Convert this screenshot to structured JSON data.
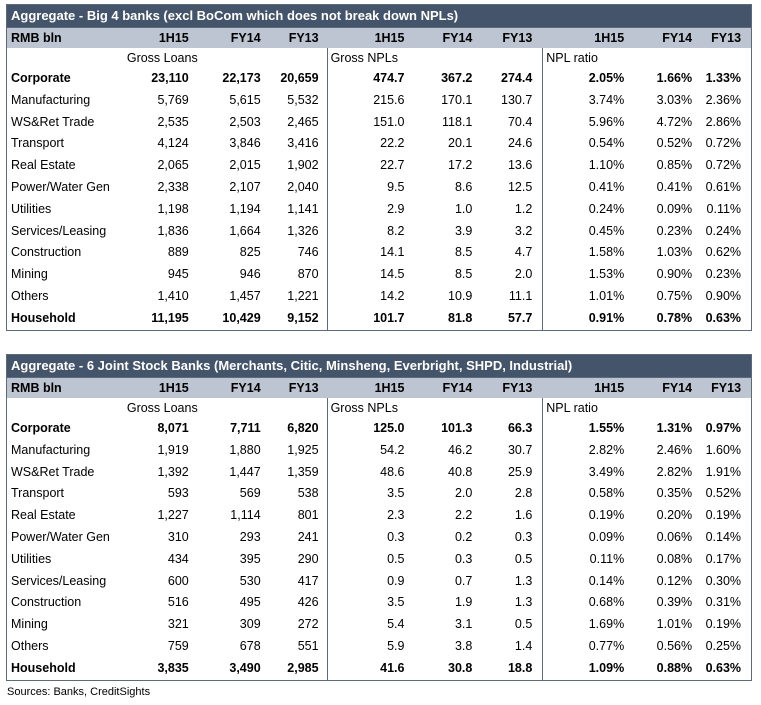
{
  "table1": {
    "title": "Aggregate - Big 4 banks (excl BoCom which does not break down NPLs)",
    "header": [
      "RMB bln",
      "1H15",
      "FY14",
      "FY13",
      "1H15",
      "FY14",
      "FY13",
      "1H15",
      "FY14",
      "FY13"
    ],
    "sub": {
      "gross_loans": "Gross Loans",
      "gross_npls": "Gross NPLs",
      "npl_ratio": "NPL ratio"
    },
    "rows": [
      {
        "label": "Corporate",
        "values": [
          "23,110",
          "22,173",
          "20,659",
          "474.7",
          "367.2",
          "274.4",
          "2.05%",
          "1.66%",
          "1.33%"
        ]
      },
      {
        "label": "Manufacturing",
        "values": [
          "5,769",
          "5,615",
          "5,532",
          "215.6",
          "170.1",
          "130.7",
          "3.74%",
          "3.03%",
          "2.36%"
        ]
      },
      {
        "label": "WS&Ret Trade",
        "values": [
          "2,535",
          "2,503",
          "2,465",
          "151.0",
          "118.1",
          "70.4",
          "5.96%",
          "4.72%",
          "2.86%"
        ]
      },
      {
        "label": "Transport",
        "values": [
          "4,124",
          "3,846",
          "3,416",
          "22.2",
          "20.1",
          "24.6",
          "0.54%",
          "0.52%",
          "0.72%"
        ]
      },
      {
        "label": "Real Estate",
        "values": [
          "2,065",
          "2,015",
          "1,902",
          "22.7",
          "17.2",
          "13.6",
          "1.10%",
          "0.85%",
          "0.72%"
        ]
      },
      {
        "label": "Power/Water Gen",
        "values": [
          "2,338",
          "2,107",
          "2,040",
          "9.5",
          "8.6",
          "12.5",
          "0.41%",
          "0.41%",
          "0.61%"
        ]
      },
      {
        "label": "Utilities",
        "values": [
          "1,198",
          "1,194",
          "1,141",
          "2.9",
          "1.0",
          "1.2",
          "0.24%",
          "0.09%",
          "0.11%"
        ]
      },
      {
        "label": "Services/Leasing",
        "values": [
          "1,836",
          "1,664",
          "1,326",
          "8.2",
          "3.9",
          "3.2",
          "0.45%",
          "0.23%",
          "0.24%"
        ]
      },
      {
        "label": "Construction",
        "values": [
          "889",
          "825",
          "746",
          "14.1",
          "8.5",
          "4.7",
          "1.58%",
          "1.03%",
          "0.62%"
        ]
      },
      {
        "label": "Mining",
        "values": [
          "945",
          "946",
          "870",
          "14.5",
          "8.5",
          "2.0",
          "1.53%",
          "0.90%",
          "0.23%"
        ]
      },
      {
        "label": "Others",
        "values": [
          "1,410",
          "1,457",
          "1,221",
          "14.2",
          "10.9",
          "11.1",
          "1.01%",
          "0.75%",
          "0.90%"
        ]
      },
      {
        "label": "Household",
        "values": [
          "11,195",
          "10,429",
          "9,152",
          "101.7",
          "81.8",
          "57.7",
          "0.91%",
          "0.78%",
          "0.63%"
        ]
      }
    ]
  },
  "table2": {
    "title": "Aggregate - 6 Joint Stock Banks (Merchants, Citic, Minsheng, Everbright, SHPD, Industrial)",
    "header": [
      "RMB bln",
      "1H15",
      "FY14",
      "FY13",
      "1H15",
      "FY14",
      "FY13",
      "1H15",
      "FY14",
      "FY13"
    ],
    "sub": {
      "gross_loans": "Gross Loans",
      "gross_npls": "Gross NPLs",
      "npl_ratio": "NPL ratio"
    },
    "rows": [
      {
        "label": "Corporate",
        "values": [
          "8,071",
          "7,711",
          "6,820",
          "125.0",
          "101.3",
          "66.3",
          "1.55%",
          "1.31%",
          "0.97%"
        ]
      },
      {
        "label": "Manufacturing",
        "values": [
          "1,919",
          "1,880",
          "1,925",
          "54.2",
          "46.2",
          "30.7",
          "2.82%",
          "2.46%",
          "1.60%"
        ]
      },
      {
        "label": "WS&Ret Trade",
        "values": [
          "1,392",
          "1,447",
          "1,359",
          "48.6",
          "40.8",
          "25.9",
          "3.49%",
          "2.82%",
          "1.91%"
        ]
      },
      {
        "label": "Transport",
        "values": [
          "593",
          "569",
          "538",
          "3.5",
          "2.0",
          "2.8",
          "0.58%",
          "0.35%",
          "0.52%"
        ]
      },
      {
        "label": "Real Estate",
        "values": [
          "1,227",
          "1,114",
          "801",
          "2.3",
          "2.2",
          "1.6",
          "0.19%",
          "0.20%",
          "0.19%"
        ]
      },
      {
        "label": "Power/Water Gen",
        "values": [
          "310",
          "293",
          "241",
          "0.3",
          "0.2",
          "0.3",
          "0.09%",
          "0.06%",
          "0.14%"
        ]
      },
      {
        "label": "Utilities",
        "values": [
          "434",
          "395",
          "290",
          "0.5",
          "0.3",
          "0.5",
          "0.11%",
          "0.08%",
          "0.17%"
        ]
      },
      {
        "label": "Services/Leasing",
        "values": [
          "600",
          "530",
          "417",
          "0.9",
          "0.7",
          "1.3",
          "0.14%",
          "0.12%",
          "0.30%"
        ]
      },
      {
        "label": "Construction",
        "values": [
          "516",
          "495",
          "426",
          "3.5",
          "1.9",
          "1.3",
          "0.68%",
          "0.39%",
          "0.31%"
        ]
      },
      {
        "label": "Mining",
        "values": [
          "321",
          "309",
          "272",
          "5.4",
          "3.1",
          "0.5",
          "1.69%",
          "1.01%",
          "0.19%"
        ]
      },
      {
        "label": "Others",
        "values": [
          "759",
          "678",
          "551",
          "5.9",
          "3.8",
          "1.4",
          "0.77%",
          "0.56%",
          "0.25%"
        ]
      },
      {
        "label": "Household",
        "values": [
          "3,835",
          "3,490",
          "2,985",
          "41.6",
          "30.8",
          "18.8",
          "1.09%",
          "0.88%",
          "0.63%"
        ]
      }
    ]
  },
  "footer": {
    "sources": "Sources: Banks, CreditSights"
  }
}
